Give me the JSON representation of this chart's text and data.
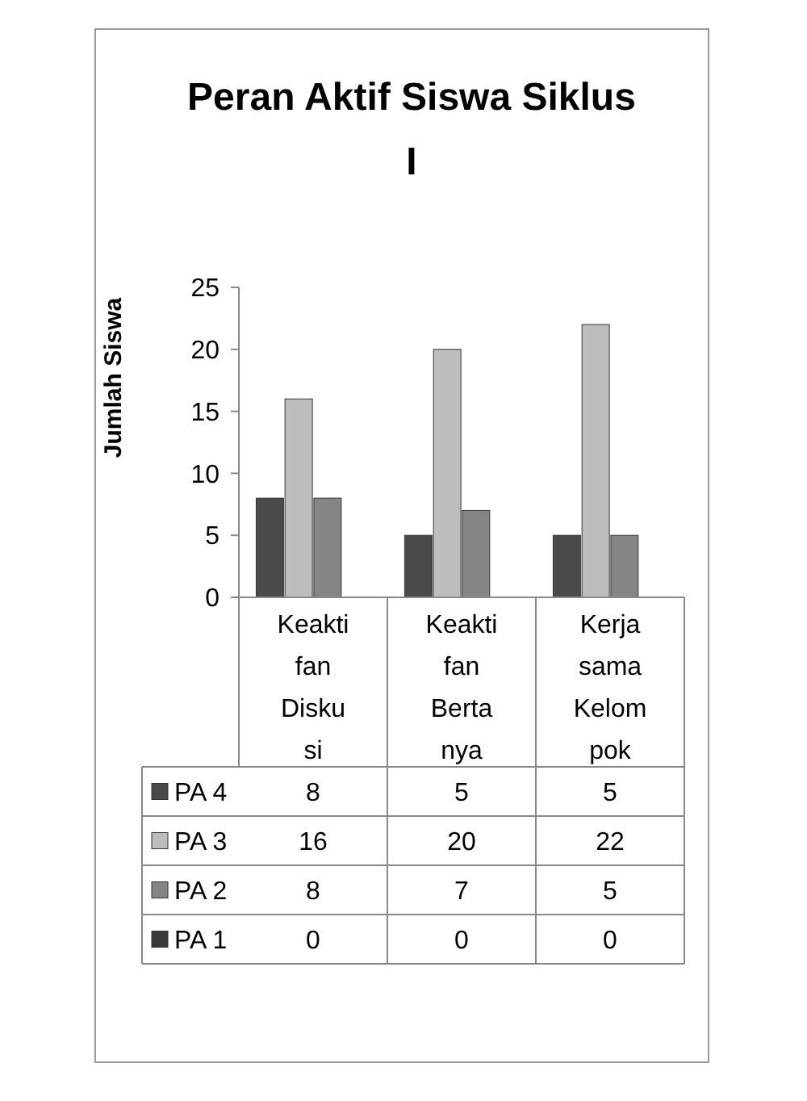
{
  "chart_data": {
    "type": "bar",
    "title": "Peran Aktif Siswa Siklus I",
    "ylabel": "Jumlah Siswa",
    "categories": [
      "Keaktifan Diskusi",
      "Keaktifan Bertanya",
      "Kerjasama Kelompok"
    ],
    "series": [
      {
        "name": "PA 4",
        "color": "#4a4a4a",
        "values": [
          8,
          5,
          5
        ]
      },
      {
        "name": "PA 3",
        "color": "#bdbdbd",
        "values": [
          16,
          20,
          22
        ]
      },
      {
        "name": "PA 2",
        "color": "#858585",
        "values": [
          8,
          7,
          5
        ]
      },
      {
        "name": "PA 1",
        "color": "#3a3a3a",
        "values": [
          0,
          0,
          0
        ]
      }
    ],
    "ylim": [
      0,
      25
    ],
    "yticks": [
      0,
      5,
      10,
      15,
      20,
      25
    ],
    "grid": false,
    "legend": "bottom",
    "data_labels": true
  }
}
